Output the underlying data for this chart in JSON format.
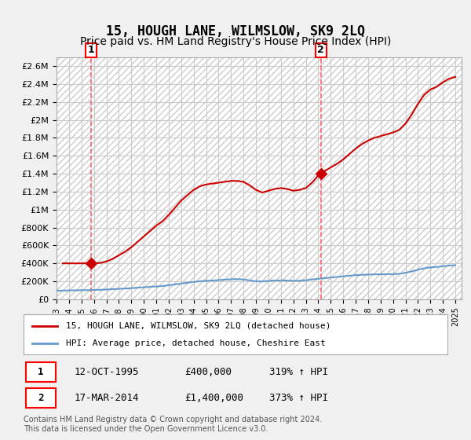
{
  "title": "15, HOUGH LANE, WILMSLOW, SK9 2LQ",
  "subtitle": "Price paid vs. HM Land Registry's House Price Index (HPI)",
  "title_fontsize": 12,
  "subtitle_fontsize": 10,
  "ylabel": "",
  "ylim": [
    0,
    2700000
  ],
  "yticks": [
    0,
    200000,
    400000,
    600000,
    800000,
    1000000,
    1200000,
    1400000,
    1600000,
    1800000,
    2000000,
    2200000,
    2400000,
    2600000
  ],
  "ytick_labels": [
    "£0",
    "£200K",
    "£400K",
    "£600K",
    "£800K",
    "£1M",
    "£1.2M",
    "£1.4M",
    "£1.6M",
    "£1.8M",
    "£2M",
    "£2.2M",
    "£2.4M",
    "£2.6M"
  ],
  "xlim_start": 1993.0,
  "xlim_end": 2025.5,
  "background_color": "#f0f0f0",
  "plot_bg_color": "#ffffff",
  "grid_color": "#cccccc",
  "house_line_color": "#cc0000",
  "hpi_line_color": "#6699cc",
  "marker_color": "#cc0000",
  "dashed_line_color": "#ff6666",
  "transaction1_x": 1995.78,
  "transaction1_y": 400000,
  "transaction1_label": "1",
  "transaction2_x": 2014.21,
  "transaction2_y": 1400000,
  "transaction2_label": "2",
  "legend_house": "15, HOUGH LANE, WILMSLOW, SK9 2LQ (detached house)",
  "legend_hpi": "HPI: Average price, detached house, Cheshire East",
  "table_row1": [
    "1",
    "12-OCT-1995",
    "£400,000",
    "319% ↑ HPI"
  ],
  "table_row2": [
    "2",
    "17-MAR-2014",
    "£1,400,000",
    "373% ↑ HPI"
  ],
  "footnote": "Contains HM Land Registry data © Crown copyright and database right 2024.\nThis data is licensed under the Open Government Licence v3.0.",
  "hpi_years": [
    1993,
    1993.5,
    1994,
    1994.5,
    1995,
    1995.5,
    1996,
    1996.5,
    1997,
    1997.5,
    1998,
    1998.5,
    1999,
    1999.5,
    2000,
    2000.5,
    2001,
    2001.5,
    2002,
    2002.5,
    2003,
    2003.5,
    2004,
    2004.5,
    2005,
    2005.5,
    2006,
    2006.5,
    2007,
    2007.5,
    2008,
    2008.5,
    2009,
    2009.5,
    2010,
    2010.5,
    2011,
    2011.5,
    2012,
    2012.5,
    2013,
    2013.5,
    2014,
    2014.5,
    2015,
    2015.5,
    2016,
    2016.5,
    2017,
    2017.5,
    2018,
    2018.5,
    2019,
    2019.5,
    2020,
    2020.5,
    2021,
    2021.5,
    2022,
    2022.5,
    2023,
    2023.5,
    2024,
    2024.5,
    2025
  ],
  "hpi_values": [
    95000,
    96000,
    98000,
    99000,
    100000,
    101000,
    103000,
    105000,
    108000,
    112000,
    116000,
    119000,
    123000,
    128000,
    133000,
    138000,
    142000,
    147000,
    155000,
    165000,
    175000,
    183000,
    193000,
    200000,
    205000,
    208000,
    213000,
    218000,
    222000,
    224000,
    220000,
    210000,
    200000,
    198000,
    205000,
    208000,
    210000,
    208000,
    205000,
    207000,
    212000,
    220000,
    228000,
    235000,
    242000,
    248000,
    255000,
    262000,
    268000,
    272000,
    275000,
    277000,
    278000,
    279000,
    280000,
    283000,
    295000,
    310000,
    330000,
    345000,
    355000,
    360000,
    368000,
    375000,
    380000
  ],
  "house_years": [
    1993.5,
    1994,
    1994.5,
    1995,
    1995.5,
    1996,
    1996.5,
    1997,
    1997.5,
    1998,
    1998.5,
    1999,
    1999.5,
    2000,
    2000.5,
    2001,
    2001.5,
    2002,
    2002.5,
    2003,
    2003.5,
    2004,
    2004.5,
    2005,
    2005.5,
    2006,
    2006.5,
    2007,
    2007.5,
    2008,
    2008.5,
    2009,
    2009.5,
    2010,
    2010.5,
    2011,
    2011.5,
    2012,
    2012.5,
    2013,
    2013.5,
    2014,
    2014.2,
    2014.5,
    2015,
    2015.5,
    2016,
    2016.5,
    2017,
    2017.5,
    2018,
    2018.5,
    2019,
    2019.5,
    2020,
    2020.5,
    2021,
    2021.5,
    2022,
    2022.5,
    2023,
    2023.5,
    2024,
    2024.5,
    2025
  ],
  "house_values": [
    400000,
    400000,
    400000,
    400000,
    400000,
    400000,
    405000,
    420000,
    450000,
    490000,
    530000,
    580000,
    640000,
    700000,
    760000,
    820000,
    870000,
    940000,
    1020000,
    1100000,
    1160000,
    1220000,
    1260000,
    1280000,
    1290000,
    1300000,
    1310000,
    1320000,
    1320000,
    1310000,
    1270000,
    1220000,
    1190000,
    1210000,
    1230000,
    1240000,
    1230000,
    1210000,
    1220000,
    1240000,
    1300000,
    1380000,
    1400000,
    1430000,
    1470000,
    1510000,
    1560000,
    1620000,
    1680000,
    1730000,
    1770000,
    1800000,
    1820000,
    1840000,
    1860000,
    1890000,
    1960000,
    2060000,
    2180000,
    2280000,
    2340000,
    2370000,
    2420000,
    2460000,
    2480000
  ]
}
